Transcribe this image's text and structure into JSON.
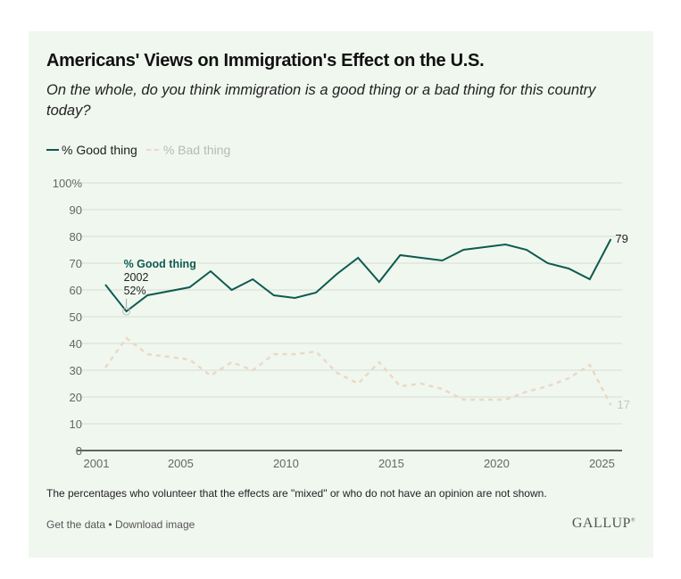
{
  "header": {
    "title": "Americans' Views on Immigration's Effect on the U.S.",
    "subtitle": "On the whole, do you think immigration is a good thing or a bad thing for this country today?"
  },
  "legend": {
    "good_label": "% Good thing",
    "bad_label": "% Bad thing"
  },
  "annotation": {
    "series": "% Good thing",
    "year": "2002",
    "value": "52%"
  },
  "end_labels": {
    "good": "79",
    "bad": "17"
  },
  "footer": {
    "note": "The percentages who volunteer that the effects are \"mixed\" or who do not have an opinion are not shown.",
    "get_data": "Get the data",
    "separator": "•",
    "download": "Download image",
    "logo": "GALLUP"
  },
  "colors": {
    "good": "#0e5a50",
    "bad": "#ead9c5",
    "grid": "#d6ddd5",
    "axis": "#333333",
    "background": "#f0f7ef"
  },
  "chart_data": {
    "type": "line",
    "title": "Americans' Views on Immigration's Effect on the U.S.",
    "subtitle": "On the whole, do you think immigration is a good thing or a bad thing for this country today?",
    "xlabel": "",
    "ylabel": "",
    "x_ticks": [
      2001,
      2005,
      2010,
      2015,
      2020,
      2025
    ],
    "y_ticks": [
      0,
      10,
      20,
      30,
      40,
      50,
      60,
      70,
      80,
      90,
      100
    ],
    "y_tick_labels": [
      "0",
      "10",
      "20",
      "30",
      "40",
      "50",
      "60",
      "70",
      "80",
      "90",
      "100%"
    ],
    "xlim": [
      2001,
      2026
    ],
    "ylim": [
      0,
      100
    ],
    "grid": true,
    "legend": "top-left",
    "series": [
      {
        "name": "% Good thing",
        "style": "solid",
        "x": [
          2001,
          2002,
          2003,
          2005,
          2006,
          2007,
          2008,
          2009,
          2010,
          2011,
          2012,
          2013,
          2014,
          2015,
          2016,
          2017,
          2018,
          2019,
          2020,
          2021,
          2022,
          2023,
          2024,
          2025
        ],
        "values": [
          62,
          52,
          58,
          61,
          67,
          60,
          64,
          58,
          57,
          59,
          66,
          72,
          63,
          73,
          72,
          71,
          75,
          76,
          77,
          75,
          70,
          68,
          64,
          79
        ]
      },
      {
        "name": "% Bad thing",
        "style": "dashed",
        "x": [
          2001,
          2002,
          2003,
          2005,
          2006,
          2007,
          2008,
          2009,
          2010,
          2011,
          2012,
          2013,
          2014,
          2015,
          2016,
          2017,
          2018,
          2019,
          2020,
          2021,
          2022,
          2023,
          2024,
          2025
        ],
        "values": [
          31,
          42,
          36,
          34,
          28,
          33,
          30,
          36,
          36,
          37,
          29,
          25,
          33,
          24,
          25,
          23,
          19,
          19,
          19,
          22,
          24,
          27,
          32,
          17
        ]
      }
    ],
    "annotations": [
      {
        "series": "% Good thing",
        "x": 2002,
        "text": [
          "% Good thing",
          "2002",
          "52%"
        ]
      }
    ]
  }
}
